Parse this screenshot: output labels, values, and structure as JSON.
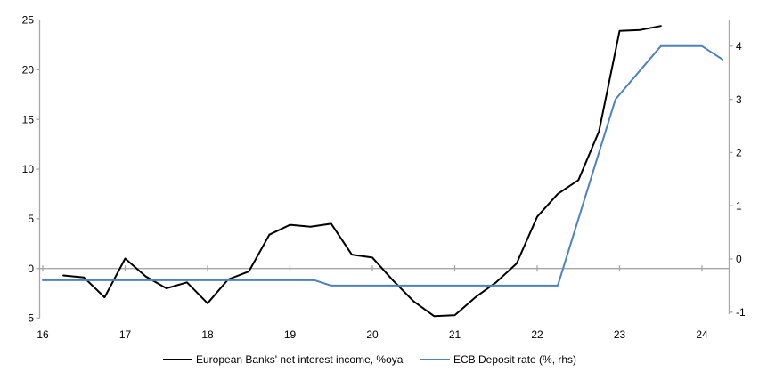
{
  "chart_data": {
    "type": "line",
    "title": "",
    "xlabel": "",
    "ylabel_left": "",
    "ylabel_right": "",
    "grid": "horizontal-zero-line-only",
    "legend_position": "bottom",
    "axis_color": "#a6a6a6",
    "background": "#ffffff",
    "x_ticks": [
      16,
      17,
      18,
      19,
      20,
      21,
      22,
      23,
      24
    ],
    "left_axis": {
      "ticks": [
        25,
        20,
        15,
        10,
        5,
        0,
        -5
      ],
      "range": [
        -5,
        25
      ]
    },
    "right_axis": {
      "ticks": [
        4,
        3,
        2,
        1,
        0,
        -1
      ],
      "range": [
        -1.1,
        4.5
      ]
    },
    "series": [
      {
        "name": "European Banks' net interest income, %oya",
        "axis": "left",
        "color": "#000000",
        "x": [
          16.25,
          16.5,
          16.75,
          17.0,
          17.25,
          17.5,
          17.75,
          18.0,
          18.25,
          18.5,
          18.75,
          19.0,
          19.25,
          19.5,
          19.75,
          20.0,
          20.25,
          20.5,
          20.75,
          21.0,
          21.25,
          21.5,
          21.75,
          22.0,
          22.25,
          22.5,
          22.75,
          23.0,
          23.25,
          23.5
        ],
        "y": [
          -0.7,
          -0.9,
          -2.9,
          1.0,
          -0.8,
          -2.0,
          -1.4,
          -3.5,
          -1.1,
          -0.3,
          3.4,
          4.4,
          4.2,
          4.5,
          1.4,
          1.1,
          -1.2,
          -3.3,
          -4.8,
          -4.7,
          -2.9,
          -1.4,
          0.5,
          5.2,
          7.5,
          8.9,
          13.8,
          23.9,
          24.0,
          24.4
        ]
      },
      {
        "name": "ECB Deposit rate (%, rhs)",
        "axis": "right",
        "color": "#4f81bd",
        "x": [
          16.0,
          19.3,
          19.5,
          22.25,
          22.95,
          23.5,
          24.0,
          24.25
        ],
        "y": [
          -0.4,
          -0.4,
          -0.5,
          -0.5,
          3.0,
          4.0,
          4.0,
          3.75
        ]
      }
    ]
  }
}
